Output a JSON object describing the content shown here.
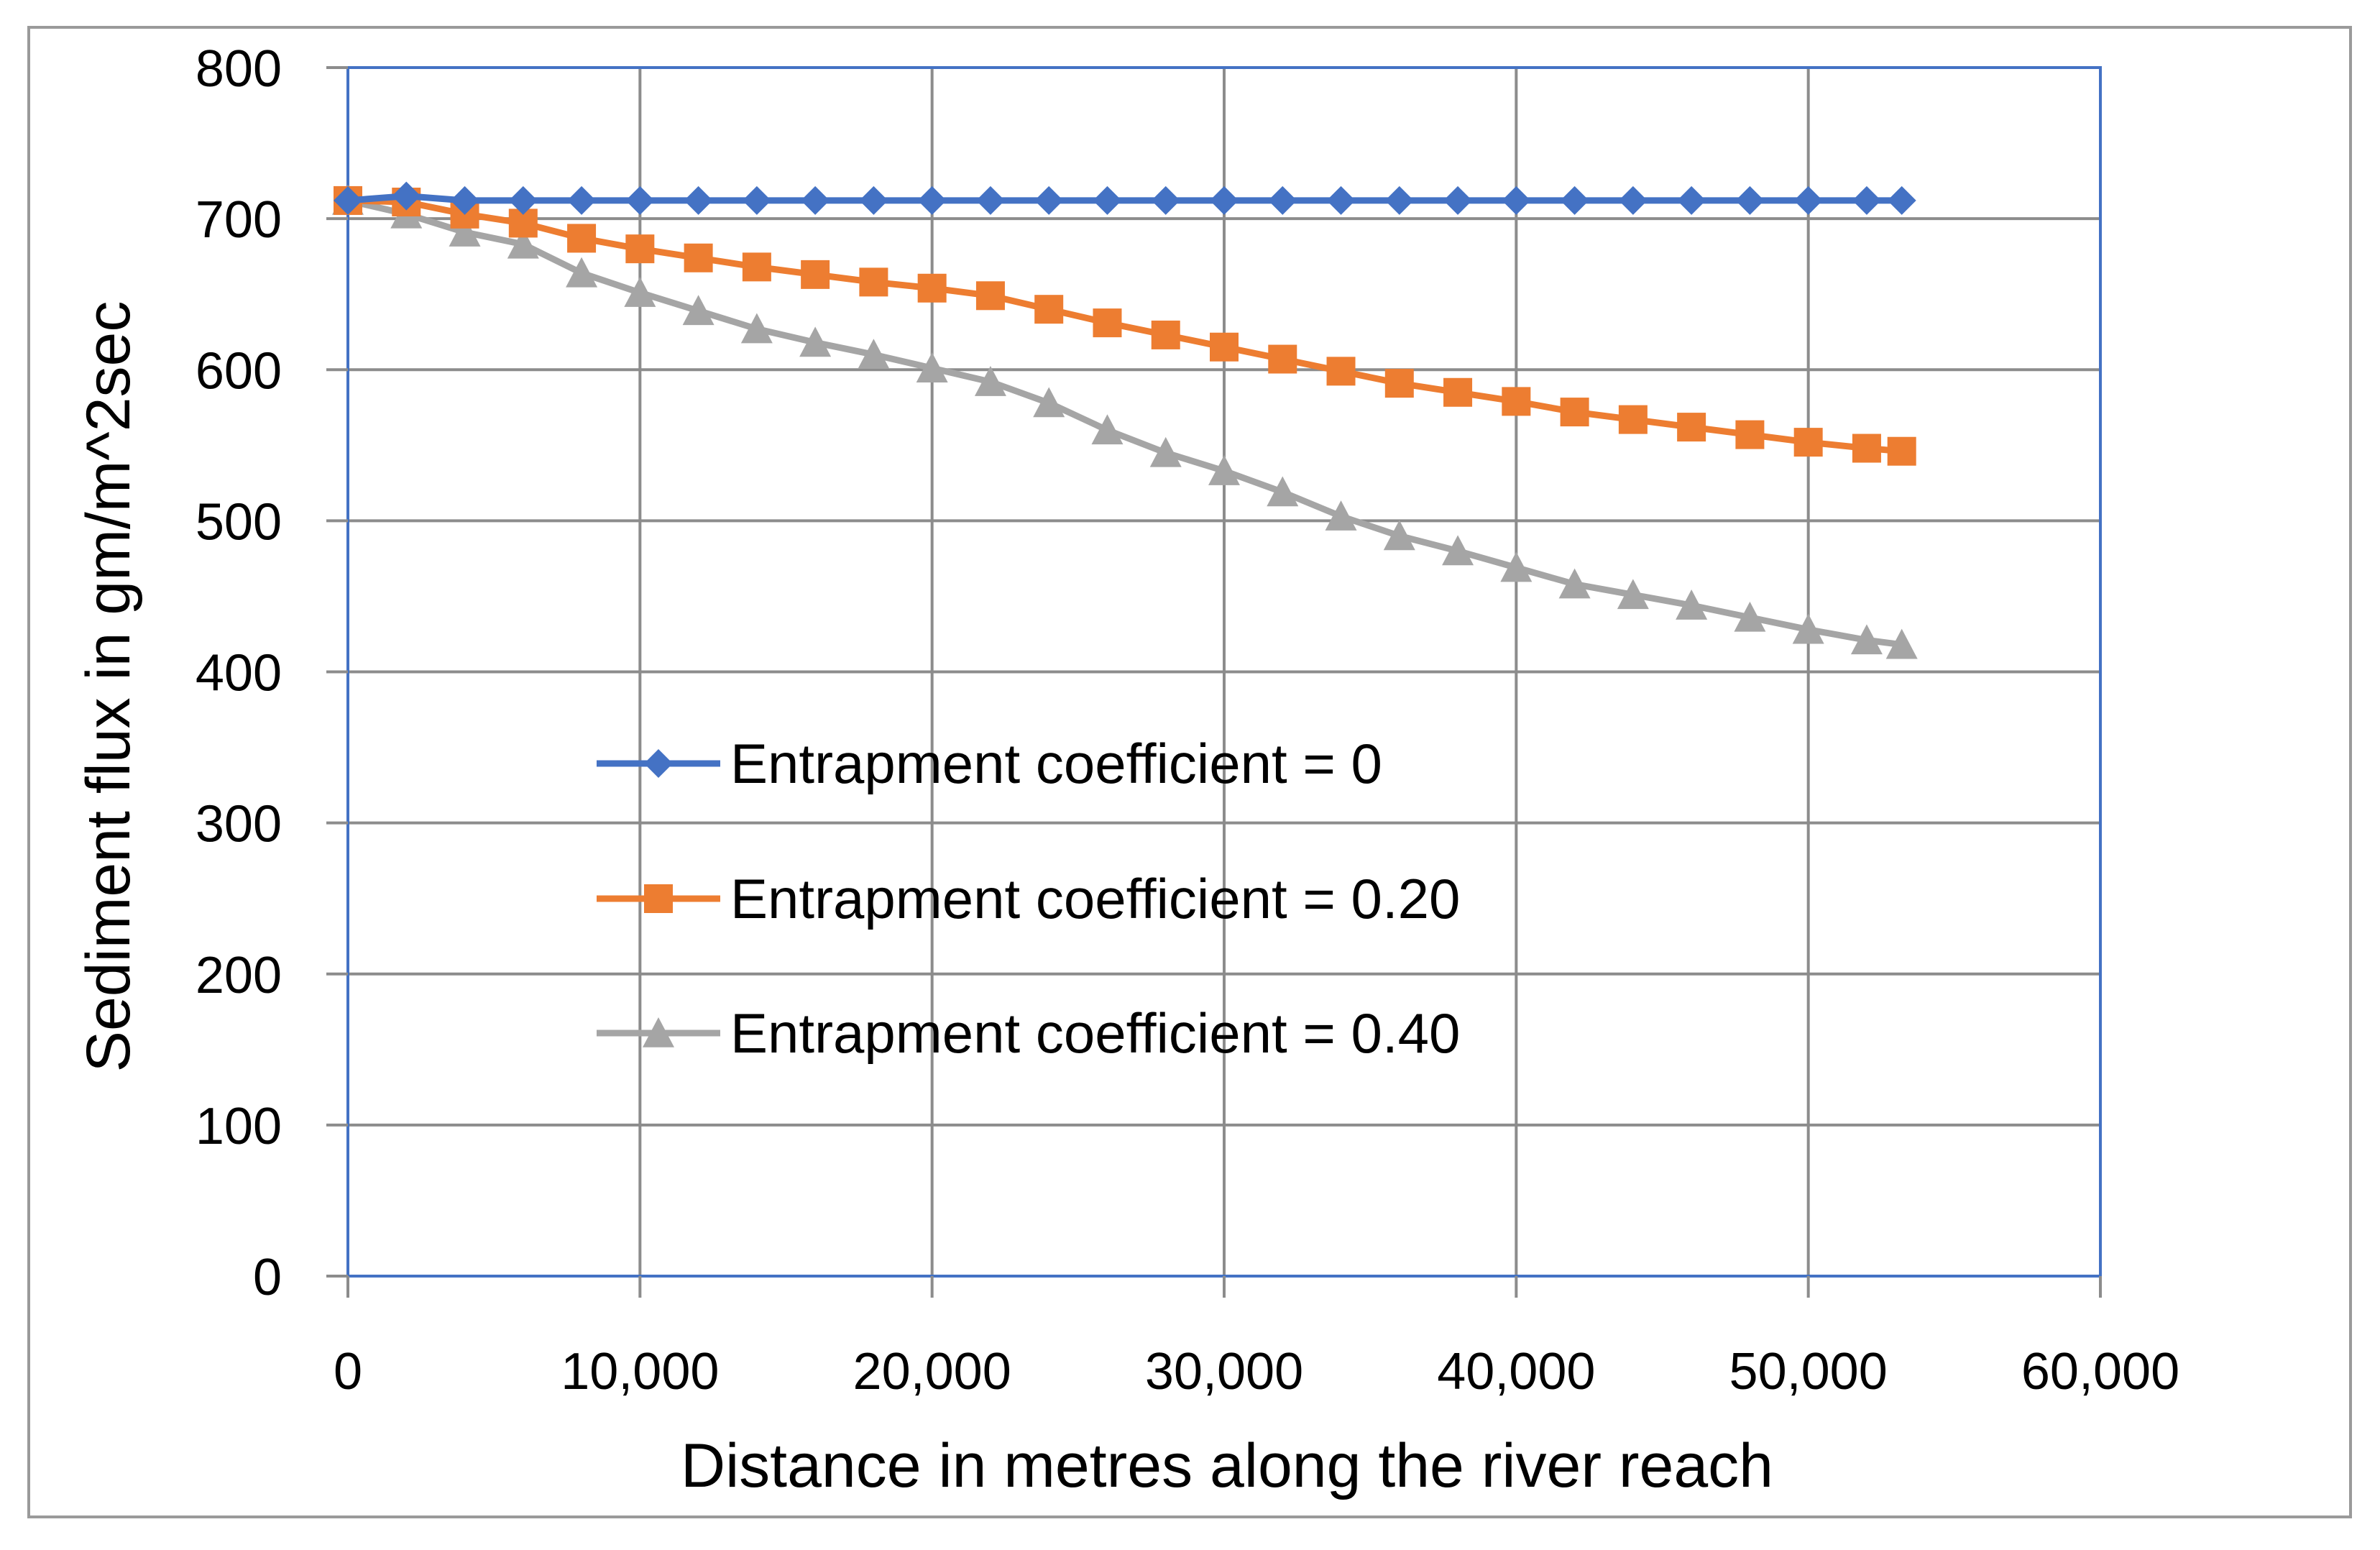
{
  "chart_data": {
    "type": "line",
    "title": "",
    "xlabel": "Distance in metres along the river reach",
    "ylabel": "Sediment flux in gm/m^2sec",
    "xlim": [
      0,
      60000
    ],
    "ylim": [
      0,
      800
    ],
    "x_ticks": [
      0,
      10000,
      20000,
      30000,
      40000,
      50000,
      60000
    ],
    "x_tick_labels": [
      "0",
      "10,000",
      "20,000",
      "30,000",
      "40,000",
      "50,000",
      "60,000"
    ],
    "y_ticks": [
      0,
      100,
      200,
      300,
      400,
      500,
      600,
      700,
      800
    ],
    "y_tick_labels": [
      "0",
      "100",
      "200",
      "300",
      "400",
      "500",
      "600",
      "700",
      "800"
    ],
    "grid": true,
    "legend_position": "center",
    "x": [
      0,
      2000,
      4000,
      6000,
      8000,
      10000,
      12000,
      14000,
      16000,
      18000,
      20000,
      22000,
      24000,
      26000,
      28000,
      30000,
      32000,
      34000,
      36000,
      38000,
      40000,
      42000,
      44000,
      46000,
      48000,
      50000,
      52000,
      53200
    ],
    "series": [
      {
        "name": "Entrapment coefficient = 0",
        "color": "#4472C4",
        "marker": "diamond",
        "values": [
          712,
          715,
          712,
          712,
          712,
          712,
          712,
          712,
          712,
          712,
          712,
          712,
          712,
          712,
          712,
          712,
          712,
          712,
          712,
          712,
          712,
          712,
          712,
          712,
          712,
          712,
          712,
          712
        ]
      },
      {
        "name": "Entrapment coefficient = 0.20",
        "color": "#ED7D31",
        "marker": "square",
        "values": [
          712,
          711,
          703,
          697,
          687,
          680,
          674,
          668,
          663,
          658,
          654,
          649,
          640,
          631,
          623,
          615,
          607,
          599,
          591,
          585,
          579,
          572,
          567,
          562,
          557,
          552,
          548,
          546
        ]
      },
      {
        "name": "Entrapment coefficient = 0.40",
        "color": "#A5A5A5",
        "marker": "triangle",
        "values": [
          712,
          703,
          691,
          683,
          664,
          651,
          639,
          627,
          618,
          610,
          601,
          592,
          578,
          560,
          545,
          533,
          519,
          503,
          490,
          480,
          469,
          458,
          451,
          444,
          436,
          428,
          421,
          418
        ]
      }
    ]
  }
}
